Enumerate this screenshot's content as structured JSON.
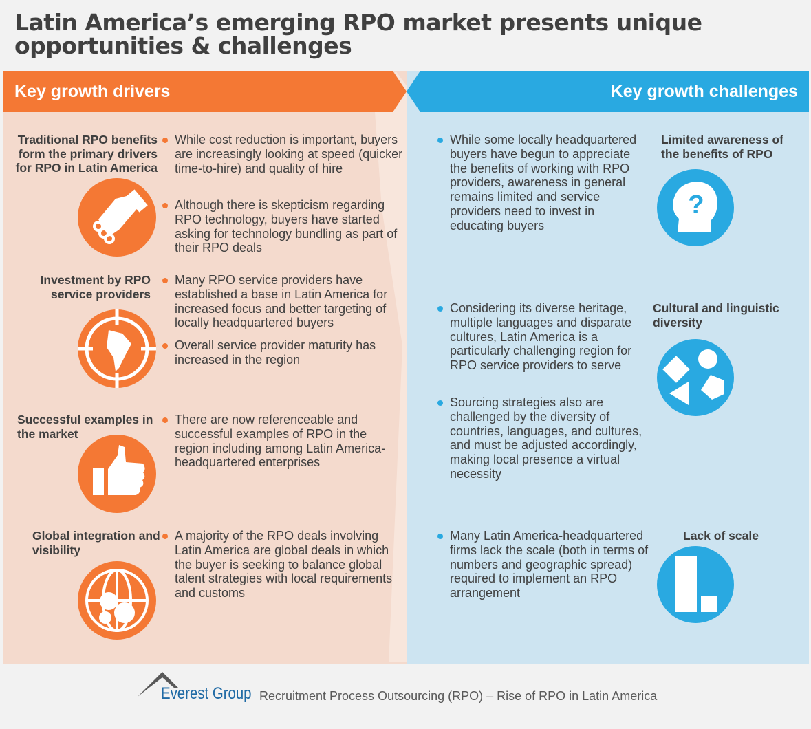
{
  "title": "Latin America’s emerging RPO market presents unique opportunities & challenges",
  "colors": {
    "drivers": "#f47834",
    "challenges": "#29a9e1",
    "drivers_bg": "#f4dacd",
    "challenges_bg": "#cde4f1"
  },
  "drivers": {
    "header": "Key growth drivers",
    "items": [
      {
        "label": "Traditional RPO benefits form the primary drivers for RPO in Latin America",
        "icon": "handshake-icon",
        "bullets": [
          "While cost reduction is important, buyers are increasingly looking at speed (quicker time-to-hire) and quality of hire",
          "Although there is skepticism regarding RPO technology, buyers have started asking for technology bundling as part of their RPO deals"
        ]
      },
      {
        "label": "Investment by RPO service providers",
        "icon": "target-map-icon",
        "bullets": [
          "Many RPO service providers have established a base in Latin America for increased focus and better targeting of locally headquartered buyers",
          "Overall service provider maturity has increased in the region"
        ]
      },
      {
        "label": "Successful examples in the market",
        "icon": "thumbs-up-icon",
        "bullets": [
          "There are now referenceable and successful examples of RPO in the region including among Latin America-headquartered enterprises"
        ]
      },
      {
        "label": "Global integration and visibility",
        "icon": "globe-gears-icon",
        "bullets": [
          "A majority of the RPO deals involving Latin America are global deals in which the buyer is seeking to balance global talent strategies with local requirements and customs"
        ]
      }
    ]
  },
  "challenges": {
    "header": "Key growth challenges",
    "items": [
      {
        "label": "Limited awareness of the benefits of RPO",
        "icon": "head-question-icon",
        "bullets": [
          "While some locally headquartered buyers have begun to appreciate the benefits of working with RPO providers, awareness in general remains limited and service providers need to invest in educating buyers"
        ]
      },
      {
        "label": "Cultural and linguistic diversity",
        "icon": "shapes-icon",
        "bullets": [
          "Considering its diverse heritage, multiple languages and disparate cultures, Latin America is a particularly challenging region for RPO service providers to serve",
          "Sourcing strategies also are challenged by the diversity of countries, languages, and cultures, and must be adjusted accordingly, making local presence a virtual necessity"
        ]
      },
      {
        "label": "Lack of scale",
        "icon": "bar-chart-icon",
        "bullets": [
          "Many Latin America-headquartered firms lack the scale (both in terms of numbers and geographic spread) required to implement an RPO arrangement"
        ]
      }
    ]
  },
  "footer": {
    "brand": "Everest Group",
    "subtitle": "Recruitment Process Outsourcing (RPO) – Rise of RPO in Latin America"
  }
}
